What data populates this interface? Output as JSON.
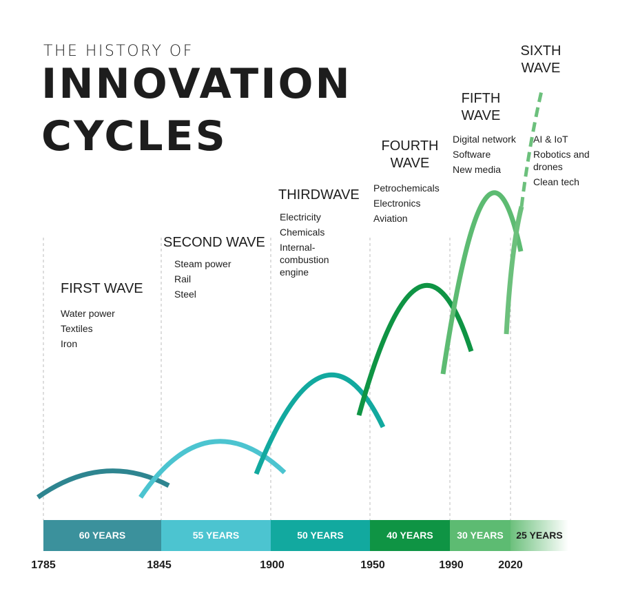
{
  "title": {
    "line1": "THE HISTORY OF",
    "line2": "INNOVATION",
    "line3": "CYCLES"
  },
  "waves": [
    {
      "name": "FIRST WAVE",
      "items": [
        "Water power",
        "Textiles",
        "Iron"
      ],
      "duration": "60 YEARS",
      "color": "#3b919c"
    },
    {
      "name": "SECOND WAVE",
      "items": [
        "Steam power",
        "Rail",
        "Steel"
      ],
      "duration": "55 YEARS",
      "color": "#4cc4d0"
    },
    {
      "name": "THIRDWAVE",
      "items": [
        "Electricity",
        "Chemicals",
        "Internal-combustion engine"
      ],
      "duration": "50 YEARS",
      "color": "#12a99f"
    },
    {
      "name": "FOURTH WAVE",
      "items": [
        "Petrochemicals",
        "Electronics",
        "Aviation"
      ],
      "duration": "40 YEARS",
      "color": "#0f9444"
    },
    {
      "name": "FIFTH WAVE",
      "items": [
        "Digital network",
        "Software",
        "New media"
      ],
      "duration": "30 YEARS",
      "color": "#5dbb72"
    },
    {
      "name": "SIXTH WAVE",
      "items": [
        "AI & IoT",
        "Robotics and drones",
        "Clean tech"
      ],
      "duration": "25 YEARS",
      "color": "#6cc07c"
    }
  ],
  "years": [
    "1785",
    "1845",
    "1900",
    "1950",
    "1990",
    "2020"
  ]
}
